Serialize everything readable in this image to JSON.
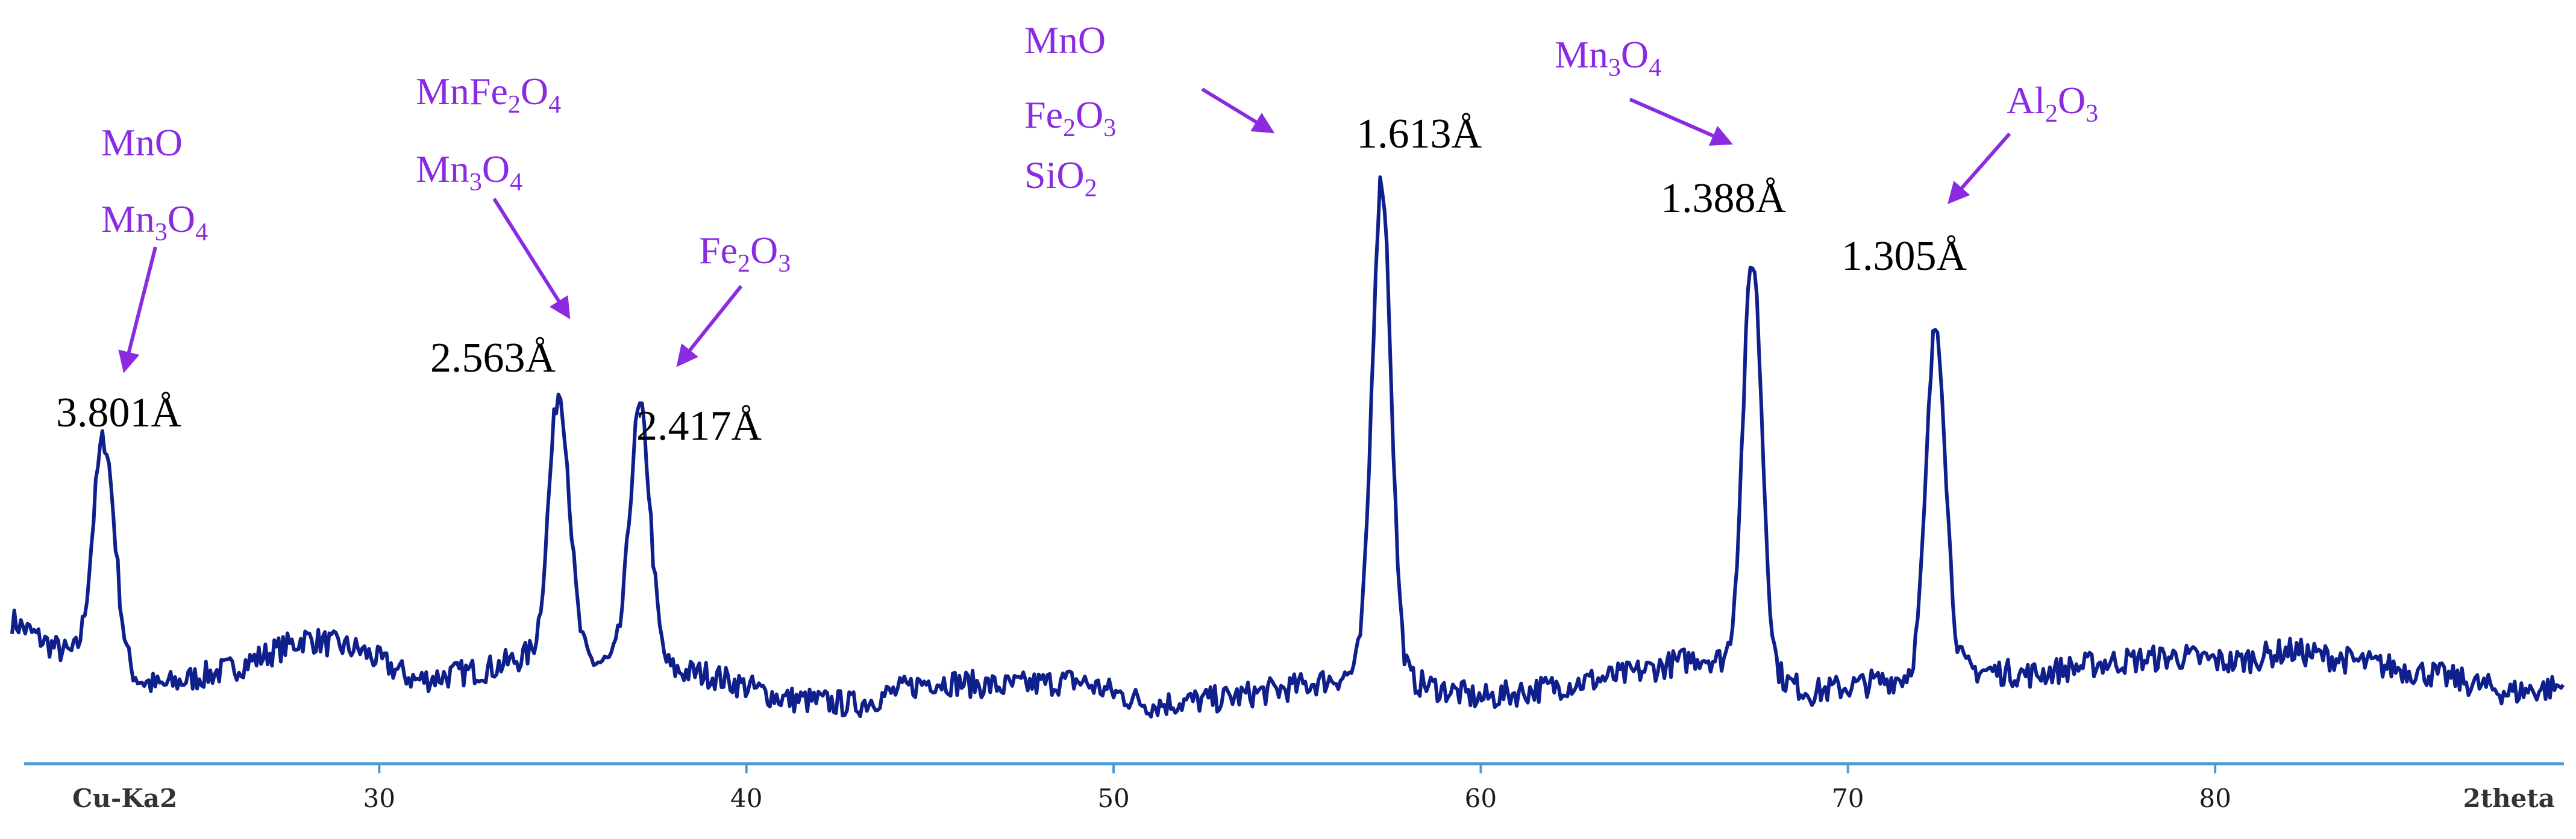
{
  "chart_data": {
    "type": "line",
    "title": "",
    "xlabel": "2theta",
    "radiation_label": "Cu-Ka2",
    "ylabel": "",
    "xlim": [
      20,
      89.5
    ],
    "x_ticks": [
      30,
      40,
      50,
      60,
      70,
      80
    ],
    "y_axis_shown": false,
    "grid": false,
    "colors": {
      "pattern": "#0f1f8c",
      "axis": "#4a9ad8",
      "phase_labels": "#8a2be2",
      "arrows": "#8a2be2",
      "d_spacing_labels": "#000000"
    },
    "baseline": {
      "points": [
        [
          20,
          0.17
        ],
        [
          21,
          0.13
        ],
        [
          22,
          0.1
        ],
        [
          24,
          0.06
        ],
        [
          26,
          0.09
        ],
        [
          28,
          0.14
        ],
        [
          29.5,
          0.12
        ],
        [
          31,
          0.07
        ],
        [
          33,
          0.09
        ],
        [
          34,
          0.11
        ],
        [
          36,
          0.1
        ],
        [
          37.5,
          0.09
        ],
        [
          39,
          0.08
        ],
        [
          41,
          0.04
        ],
        [
          43,
          0.03
        ],
        [
          45,
          0.07
        ],
        [
          47,
          0.06
        ],
        [
          49,
          0.07
        ],
        [
          51,
          0.03
        ],
        [
          53,
          0.04
        ],
        [
          55,
          0.06
        ],
        [
          56.5,
          0.08
        ],
        [
          58,
          0.07
        ],
        [
          60,
          0.04
        ],
        [
          62,
          0.06
        ],
        [
          64,
          0.08
        ],
        [
          66,
          0.11
        ],
        [
          67.5,
          0.09
        ],
        [
          69,
          0.05
        ],
        [
          71,
          0.07
        ],
        [
          73,
          0.09
        ],
        [
          75,
          0.08
        ],
        [
          77,
          0.1
        ],
        [
          79,
          0.11
        ],
        [
          80.5,
          0.1
        ],
        [
          82,
          0.12
        ],
        [
          84,
          0.1
        ],
        [
          86,
          0.08
        ],
        [
          88,
          0.05
        ],
        [
          89.5,
          0.06
        ]
      ]
    },
    "peaks": [
      {
        "two_theta": 22.5,
        "intensity": 0.47,
        "width": 0.3,
        "d_spacing": "3.801Å",
        "phases": [
          "MnO",
          "Mn3O4"
        ]
      },
      {
        "two_theta": 34.9,
        "intensity": 0.55,
        "width": 0.28,
        "d_spacing": "2.563Å",
        "phases": [
          "MnFe2O4",
          "Mn3O4"
        ]
      },
      {
        "two_theta": 37.1,
        "intensity": 0.52,
        "width": 0.28,
        "d_spacing": "2.417Å",
        "phases": [
          "Fe2O3"
        ]
      },
      {
        "two_theta": 57.3,
        "intensity": 0.9,
        "width": 0.26,
        "d_spacing": "1.613Å",
        "phases": [
          "MnO",
          "Fe2O3",
          "SiO2"
        ]
      },
      {
        "two_theta": 67.4,
        "intensity": 0.77,
        "width": 0.26,
        "d_spacing": "1.388Å",
        "phases": [
          "Mn3O4"
        ]
      },
      {
        "two_theta": 72.4,
        "intensity": 0.66,
        "width": 0.26,
        "d_spacing": "1.305Å",
        "phases": [
          "Al2O3"
        ]
      }
    ],
    "annotations": {
      "d_spacing_labels": [
        "3.801Å",
        "2.563Å",
        "2.417Å",
        "1.613Å",
        "1.388Å",
        "1.305Å"
      ],
      "phase_labels": [
        "MnO",
        "Mn3O4",
        "MnFe2O4",
        "Mn3O4",
        "Fe2O3",
        "MnO",
        "Fe2O3",
        "SiO2",
        "Mn3O4",
        "Al2O3"
      ]
    }
  }
}
